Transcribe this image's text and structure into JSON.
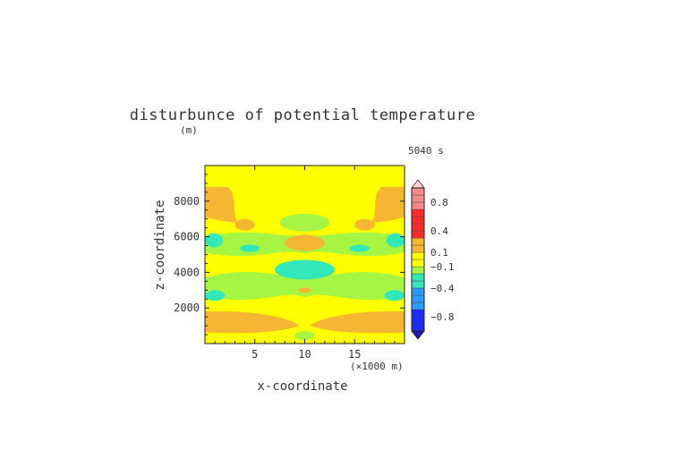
{
  "chart_data": {
    "type": "heatmap",
    "title": "disturbunce of potential temperature",
    "ylabel": "z-coordinate",
    "yunit": "(m)",
    "xlabel": "x-coordinate",
    "xunit": "(×1000 m)",
    "time_label": "5040 s",
    "xlim": [
      0,
      20
    ],
    "ylim": [
      0,
      10000
    ],
    "x_ticks": [
      5,
      10,
      15
    ],
    "y_ticks": [
      2000,
      4000,
      6000,
      8000
    ],
    "colorbar": {
      "tick_labels": [
        "0.8",
        "0.4",
        "0.1",
        "−0.1",
        "−0.4",
        "−0.8"
      ],
      "tick_values": [
        0.8,
        0.4,
        0.1,
        -0.1,
        -0.4,
        -0.8
      ],
      "range": [
        -1.0,
        1.0
      ],
      "extend": "both"
    },
    "field": {
      "background_value": 0.0,
      "regions": [
        {
          "value": 0.15,
          "shape": "left-top-lobe",
          "x": [
            0,
            3.5
          ],
          "y": [
            6800,
            8800
          ]
        },
        {
          "value": 0.15,
          "shape": "right-top-lobe",
          "x": [
            16.5,
            20
          ],
          "y": [
            6800,
            8800
          ]
        },
        {
          "value": -0.15,
          "shape": "ellipse",
          "x": [
            7.5,
            12.5
          ],
          "y": [
            6300,
            7300
          ]
        },
        {
          "value": 0.15,
          "shape": "ellipse",
          "x": [
            3,
            5
          ],
          "y": [
            6350,
            7000
          ]
        },
        {
          "value": 0.15,
          "shape": "ellipse",
          "x": [
            15,
            17
          ],
          "y": [
            6350,
            7000
          ]
        },
        {
          "value": -0.15,
          "shape": "band",
          "x": [
            0,
            20
          ],
          "y": [
            4700,
            6400
          ]
        },
        {
          "value": -0.3,
          "shape": "ellipse",
          "x": [
            0,
            1.8
          ],
          "y": [
            5400,
            6200
          ]
        },
        {
          "value": -0.3,
          "shape": "ellipse",
          "x": [
            18.2,
            20
          ],
          "y": [
            5400,
            6200
          ]
        },
        {
          "value": -0.3,
          "shape": "ellipse",
          "x": [
            3.5,
            5.5
          ],
          "y": [
            5150,
            5550
          ]
        },
        {
          "value": -0.3,
          "shape": "ellipse",
          "x": [
            14.5,
            16.5
          ],
          "y": [
            5150,
            5550
          ]
        },
        {
          "value": 0.15,
          "shape": "ellipse",
          "x": [
            8,
            12
          ],
          "y": [
            5200,
            6100
          ]
        },
        {
          "value": -0.15,
          "shape": "band",
          "x": [
            0,
            20
          ],
          "y": [
            2200,
            4200
          ]
        },
        {
          "value": -0.3,
          "shape": "ellipse",
          "x": [
            7,
            13
          ],
          "y": [
            3600,
            4700
          ]
        },
        {
          "value": -0.3,
          "shape": "ellipse",
          "x": [
            0,
            2
          ],
          "y": [
            2400,
            3000
          ]
        },
        {
          "value": -0.3,
          "shape": "ellipse",
          "x": [
            18,
            20
          ],
          "y": [
            2400,
            3000
          ]
        },
        {
          "value": 0.15,
          "shape": "left-low-lobe",
          "x": [
            0,
            9.5
          ],
          "y": [
            500,
            1800
          ]
        },
        {
          "value": 0.15,
          "shape": "right-low-lobe",
          "x": [
            10.5,
            20
          ],
          "y": [
            500,
            1800
          ]
        },
        {
          "value": -0.15,
          "shape": "ellipse",
          "x": [
            9,
            11
          ],
          "y": [
            200,
            700
          ]
        }
      ]
    }
  }
}
